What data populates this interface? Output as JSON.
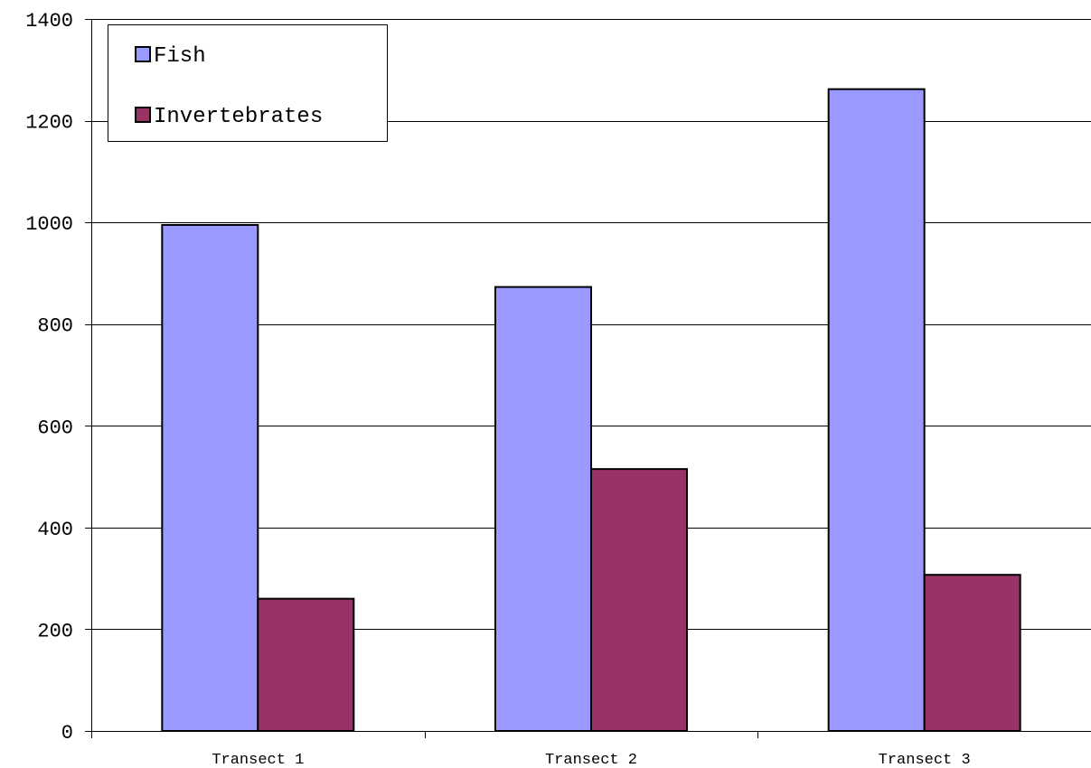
{
  "chart_data": {
    "type": "bar",
    "categories": [
      "Transect 1",
      "Transect 2",
      "Transect 3"
    ],
    "series": [
      {
        "name": "Fish",
        "values": [
          995,
          873,
          1262
        ],
        "color": "#9999ff"
      },
      {
        "name": "Invertebrates",
        "values": [
          260,
          515,
          307
        ],
        "color": "#993366"
      }
    ],
    "ylim": [
      0,
      1400
    ],
    "yticks": [
      0,
      200,
      400,
      600,
      800,
      1000,
      1200,
      1400
    ],
    "grid": true,
    "legend": "top-left",
    "title": "",
    "xlabel": "",
    "ylabel": ""
  }
}
